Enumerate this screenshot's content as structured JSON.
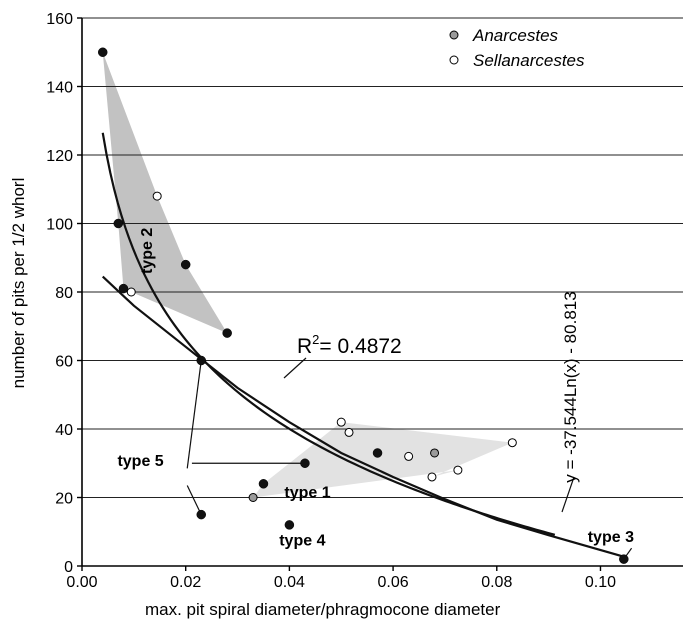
{
  "colors": {
    "black_points": "#111111",
    "anarcestes": "#9a9a9a",
    "sellanarcestes": "#ffffff",
    "type2_hull": "#c2c2c2",
    "type1_hull": "#e2e2e2",
    "grid": "#222222"
  },
  "chart_data": {
    "type": "scatter",
    "title": "",
    "xlabel": "max. pit spiral diameter/phragmocone diameter",
    "ylabel": "number of pits per 1/2 whorl",
    "xlim": [
      0,
      0.105
    ],
    "ylim": [
      0,
      160
    ],
    "x_ticks": [
      "0.00",
      "0.02",
      "0.04",
      "0.06",
      "0.08",
      "0.10"
    ],
    "y_ticks": [
      "0",
      "20",
      "40",
      "60",
      "80",
      "100",
      "120",
      "140",
      "160"
    ],
    "grid": "horizontal",
    "legend": {
      "position": "top-right",
      "entries": [
        "Anarcestes",
        "Sellanarcestes"
      ]
    },
    "series": [
      {
        "marker": "black",
        "points": [
          [
            0.004,
            150
          ],
          [
            0.007,
            100
          ],
          [
            0.008,
            81
          ],
          [
            0.02,
            88
          ],
          [
            0.028,
            68
          ],
          [
            0.023,
            60
          ],
          [
            0.023,
            15
          ],
          [
            0.035,
            24
          ],
          [
            0.043,
            30
          ],
          [
            0.04,
            12
          ],
          [
            0.057,
            33
          ],
          [
            0.1045,
            2
          ]
        ]
      },
      {
        "name": "Anarcestes",
        "marker": "grey",
        "points": [
          [
            0.033,
            20
          ],
          [
            0.068,
            33
          ]
        ]
      },
      {
        "name": "Sellanarcestes",
        "marker": "white",
        "points": [
          [
            0.0145,
            108
          ],
          [
            0.0095,
            80
          ],
          [
            0.05,
            42
          ],
          [
            0.0515,
            39
          ],
          [
            0.063,
            32
          ],
          [
            0.0675,
            26
          ],
          [
            0.0725,
            28
          ],
          [
            0.083,
            36
          ]
        ]
      }
    ],
    "hulls": [
      {
        "group": "type 2",
        "points": [
          [
            0.004,
            150
          ],
          [
            0.0145,
            108
          ],
          [
            0.02,
            88
          ],
          [
            0.028,
            68
          ],
          [
            0.008,
            81
          ],
          [
            0.007,
            100
          ]
        ]
      },
      {
        "group": "type 1",
        "points": [
          [
            0.033,
            20
          ],
          [
            0.035,
            24
          ],
          [
            0.05,
            42
          ],
          [
            0.083,
            36
          ],
          [
            0.0675,
            26
          ],
          [
            0.0725,
            28
          ]
        ]
      }
    ],
    "fits": [
      {
        "kind": "logarithmic",
        "equation": "y = -37.544Ln(x) - 80.813",
        "a": -37.544,
        "b": -80.813,
        "x_range": [
          0.004,
          0.0912
        ]
      },
      {
        "kind": "nonlinear",
        "label": "R",
        "label_sup": "2",
        "label_value": "= 0.4872",
        "points": [
          [
            0.004,
            84.5
          ],
          [
            0.01,
            76
          ],
          [
            0.02,
            64
          ],
          [
            0.03,
            52
          ],
          [
            0.04,
            42
          ],
          [
            0.05,
            33
          ],
          [
            0.06,
            26
          ],
          [
            0.07,
            19.5
          ],
          [
            0.08,
            13.5
          ],
          [
            0.09,
            9
          ],
          [
            0.105,
            2.5
          ]
        ]
      }
    ],
    "annotations": [
      {
        "text": "type 1",
        "at": [
          0.0435,
          20
        ]
      },
      {
        "text": "type 2",
        "at": [
          0.0135,
          92
        ],
        "rotate": -90
      },
      {
        "text": "type 3",
        "at": [
          0.102,
          7
        ]
      },
      {
        "text": "type 4",
        "at": [
          0.0425,
          6
        ]
      },
      {
        "text": "type 5",
        "at": [
          0.0113,
          29.2
        ]
      }
    ],
    "leaders": [
      {
        "from": [
          0.0212,
          30
        ],
        "to": [
          0.043,
          30
        ]
      },
      {
        "from": [
          0.0203,
          28.5
        ],
        "to": [
          0.023,
          60
        ]
      },
      {
        "from": [
          0.0203,
          23.5
        ],
        "to": [
          0.023,
          15
        ]
      },
      {
        "from": [
          0.106,
          5.2
        ],
        "to": [
          0.1045,
          2
        ]
      }
    ]
  }
}
